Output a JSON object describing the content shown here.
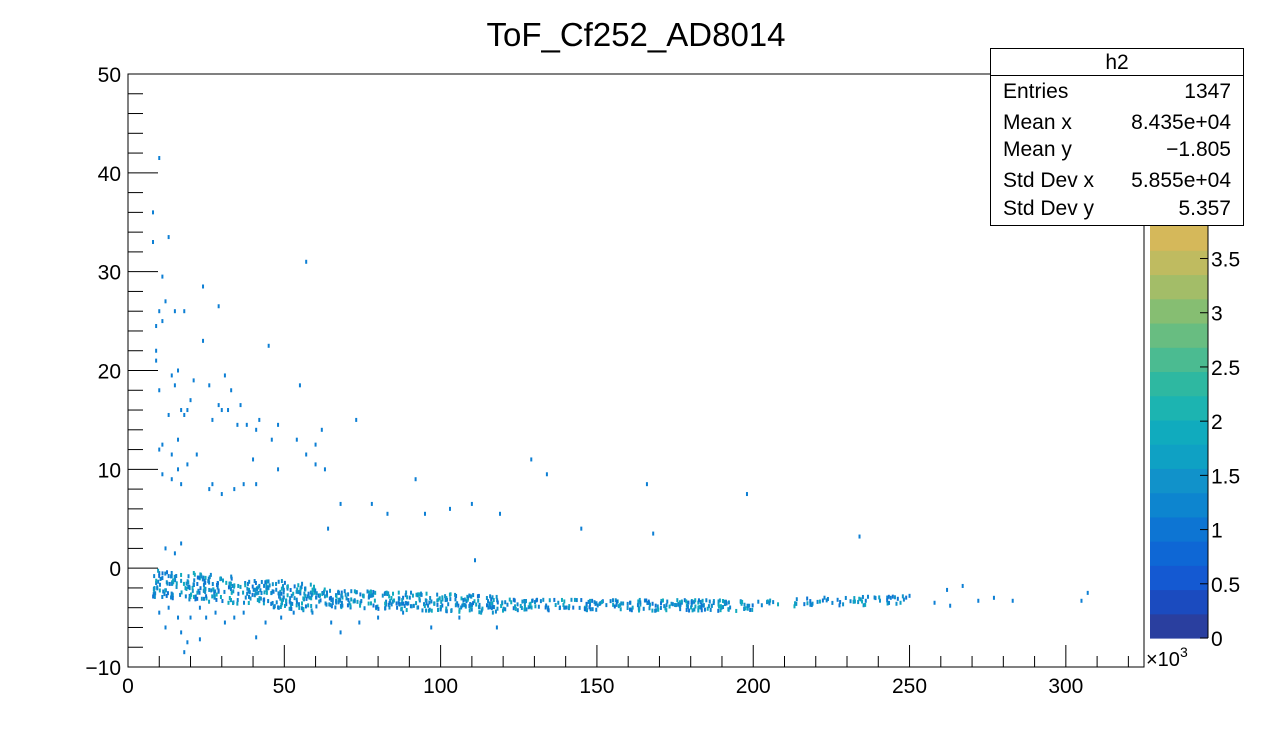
{
  "colors": {
    "palette": [
      "#2a3f9f",
      "#1b4bbf",
      "#1459d2",
      "#0e67d5",
      "#0d75d3",
      "#0d85cf",
      "#1192ca",
      "#0fa1c4",
      "#10abbe",
      "#1cb4b1",
      "#2eb8a1",
      "#4bbb91",
      "#68bd81",
      "#86be72",
      "#a3bd68",
      "#bfbb60",
      "#d5b85a"
    ],
    "points": "#0d7fd4",
    "axis": "#000000"
  },
  "stats": {
    "title": "h2",
    "rows": [
      {
        "label": "Entries",
        "value": "1347"
      },
      {
        "label": "Mean x",
        "value": "8.435e+04"
      },
      {
        "label": "Mean y",
        "value": "−1.805"
      },
      {
        "label": "Std Dev x",
        "value": "5.855e+04"
      },
      {
        "label": "Std Dev y",
        "value": "5.357"
      }
    ]
  },
  "chart_data": {
    "type": "scatter",
    "title": "ToF_Cf252_AD8014",
    "xlabel": "",
    "ylabel": "",
    "x_multiplier_label": "×10",
    "x_multiplier_exponent": "3",
    "xlim": [
      0,
      325
    ],
    "ylim": [
      -10,
      50
    ],
    "x_ticks": [
      0,
      50,
      100,
      150,
      200,
      250,
      300
    ],
    "x_tick_labels": [
      "0",
      "50",
      "100",
      "150",
      "200",
      "250",
      "300"
    ],
    "y_ticks": [
      -10,
      0,
      10,
      20,
      30,
      40,
      50
    ],
    "y_tick_labels": [
      "−10",
      "0",
      "10",
      "20",
      "30",
      "40",
      "50"
    ],
    "colorbar": {
      "range": [
        0,
        3.8
      ],
      "ticks": [
        0,
        0.5,
        1,
        1.5,
        2,
        2.5,
        3,
        3.5
      ],
      "tick_labels": [
        "0",
        "0.5",
        "1",
        "1.5",
        "2",
        "2.5",
        "3",
        "3.5"
      ]
    },
    "points": [
      [
        10,
        41.5
      ],
      [
        8,
        36
      ],
      [
        8,
        33
      ],
      [
        13,
        33.5
      ],
      [
        11,
        29.5
      ],
      [
        24,
        28.5
      ],
      [
        29,
        26.5
      ],
      [
        12,
        27
      ],
      [
        10,
        26
      ],
      [
        11,
        25
      ],
      [
        15,
        26
      ],
      [
        18,
        26
      ],
      [
        9,
        24.5
      ],
      [
        9,
        22
      ],
      [
        45,
        22.5
      ],
      [
        24,
        23
      ],
      [
        9,
        21
      ],
      [
        14,
        19.5
      ],
      [
        16,
        20
      ],
      [
        15,
        18.5
      ],
      [
        10,
        18
      ],
      [
        21,
        19
      ],
      [
        26,
        18.5
      ],
      [
        31,
        19.5
      ],
      [
        33,
        18
      ],
      [
        55,
        18.5
      ],
      [
        20,
        17
      ],
      [
        17,
        16
      ],
      [
        19,
        16
      ],
      [
        18,
        15.5
      ],
      [
        29,
        16.5
      ],
      [
        30,
        16
      ],
      [
        32,
        16
      ],
      [
        36,
        16.5
      ],
      [
        13,
        15.5
      ],
      [
        27,
        15
      ],
      [
        35,
        14.5
      ],
      [
        38,
        14.5
      ],
      [
        42,
        15
      ],
      [
        48,
        14.5
      ],
      [
        73,
        15
      ],
      [
        57,
        31
      ],
      [
        41,
        14
      ],
      [
        46,
        13
      ],
      [
        62,
        14
      ],
      [
        54,
        13
      ],
      [
        60,
        12.5
      ],
      [
        11,
        12.5
      ],
      [
        16,
        13
      ],
      [
        10,
        12
      ],
      [
        14,
        11.5
      ],
      [
        22,
        11.5
      ],
      [
        19,
        10.5
      ],
      [
        60,
        10.5
      ],
      [
        11,
        9.5
      ],
      [
        16,
        10
      ],
      [
        48,
        10
      ],
      [
        57,
        11.5
      ],
      [
        63,
        10
      ],
      [
        40,
        11
      ],
      [
        14,
        9
      ],
      [
        17,
        8.5
      ],
      [
        26,
        8
      ],
      [
        30,
        7.5
      ],
      [
        27,
        8.5
      ],
      [
        34,
        8
      ],
      [
        37,
        8.5
      ],
      [
        41,
        8.5
      ],
      [
        92,
        9
      ],
      [
        129,
        11
      ],
      [
        134,
        9.5
      ],
      [
        166,
        8.5
      ],
      [
        198,
        7.5
      ],
      [
        68,
        6.5
      ],
      [
        78,
        6.5
      ],
      [
        83,
        5.5
      ],
      [
        95,
        5.5
      ],
      [
        103,
        6
      ],
      [
        110,
        6.5
      ],
      [
        119,
        5.5
      ],
      [
        64,
        4
      ],
      [
        145,
        4
      ],
      [
        168,
        3.5
      ],
      [
        234,
        3.2
      ],
      [
        12,
        2
      ],
      [
        15,
        1.5
      ],
      [
        17,
        2.5
      ],
      [
        111,
        0.8
      ],
      [
        10,
        -0.5
      ],
      [
        13,
        -0.8
      ],
      [
        9,
        -1.5
      ],
      [
        11,
        -1
      ],
      [
        10,
        -4.5
      ],
      [
        13,
        -4
      ],
      [
        16,
        -5
      ],
      [
        12,
        -6
      ],
      [
        17,
        -6.5
      ],
      [
        20,
        -5
      ],
      [
        23,
        -4
      ],
      [
        19,
        -7.5
      ],
      [
        25,
        -5
      ],
      [
        28,
        -4.5
      ],
      [
        31,
        -5.5
      ],
      [
        34,
        -5
      ],
      [
        37,
        -4.5
      ],
      [
        41,
        -7
      ],
      [
        44,
        -5.5
      ],
      [
        49,
        -5
      ],
      [
        53,
        -4.5
      ],
      [
        59,
        -4.5
      ],
      [
        65,
        -5.5
      ],
      [
        68,
        -6.5
      ],
      [
        74,
        -5.5
      ],
      [
        80,
        -5
      ],
      [
        88,
        -4.5
      ],
      [
        97,
        -6
      ],
      [
        106,
        -5
      ],
      [
        118,
        -6
      ],
      [
        18,
        -8.5
      ],
      [
        23,
        -7.2
      ],
      [
        267,
        -1.8
      ],
      [
        262,
        -2.2
      ],
      [
        307,
        -2.5
      ],
      [
        305,
        -3.3
      ],
      [
        283,
        -3.3
      ],
      [
        250,
        -2.8
      ],
      [
        258,
        -3.5
      ],
      [
        263,
        -3.8
      ],
      [
        272,
        -3.3
      ],
      [
        277,
        -3
      ],
      [
        227,
        -3.2
      ],
      [
        236,
        -3.3
      ],
      [
        244,
        -3
      ]
    ],
    "band": {
      "description": "dense ridge of counts near y = -2 to -4 across x",
      "segments": [
        {
          "x_start": 8,
          "x_end": 60,
          "y_center_start": -1.5,
          "y_center_end": -3.0,
          "spread": 1.4,
          "count": 320
        },
        {
          "x_start": 60,
          "x_end": 120,
          "y_center_start": -3.0,
          "y_center_end": -3.7,
          "spread": 0.9,
          "count": 280
        },
        {
          "x_start": 120,
          "x_end": 200,
          "y_center_start": -3.7,
          "y_center_end": -3.8,
          "spread": 0.55,
          "count": 230
        },
        {
          "x_start": 200,
          "x_end": 250,
          "y_center_start": -3.6,
          "y_center_end": -3.2,
          "spread": 0.45,
          "count": 60
        }
      ]
    }
  }
}
